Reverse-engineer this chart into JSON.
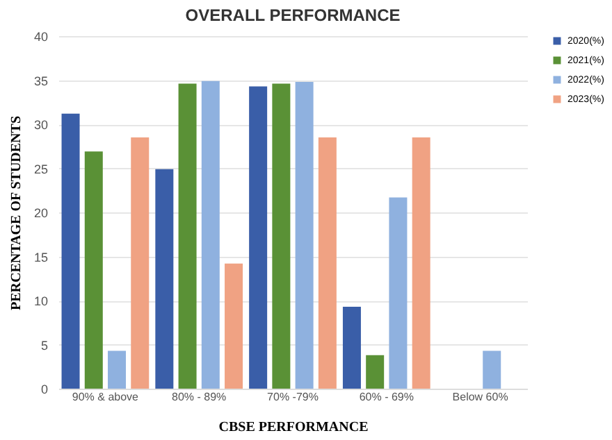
{
  "chart_data": {
    "type": "bar",
    "title": "OVERALL PERFORMANCE",
    "xlabel": "CBSE PERFORMANCE",
    "ylabel": "PERCENTAGE  OF STUDENTS",
    "categories": [
      "90% & above",
      "80% - 89%",
      "70% -79%",
      "60% - 69%",
      "Below 60%"
    ],
    "series": [
      {
        "name": "2020(%)",
        "color": "#3a5ea8",
        "values": [
          31.2,
          24.9,
          34.3,
          9.3,
          0
        ]
      },
      {
        "name": "2021(%)",
        "color": "#5a9136",
        "values": [
          26.9,
          34.6,
          34.6,
          3.8,
          0
        ]
      },
      {
        "name": "2022(%)",
        "color": "#8fb1df",
        "values": [
          4.3,
          34.9,
          34.8,
          21.7,
          4.3
        ]
      },
      {
        "name": "2023(%)",
        "color": "#f0a283",
        "values": [
          28.5,
          14.2,
          28.5,
          28.5,
          0
        ]
      }
    ],
    "ylim": [
      0,
      40
    ],
    "yticks": [
      0,
      5,
      10,
      15,
      20,
      25,
      30,
      35,
      40
    ],
    "grid": "y",
    "legend": "right"
  }
}
